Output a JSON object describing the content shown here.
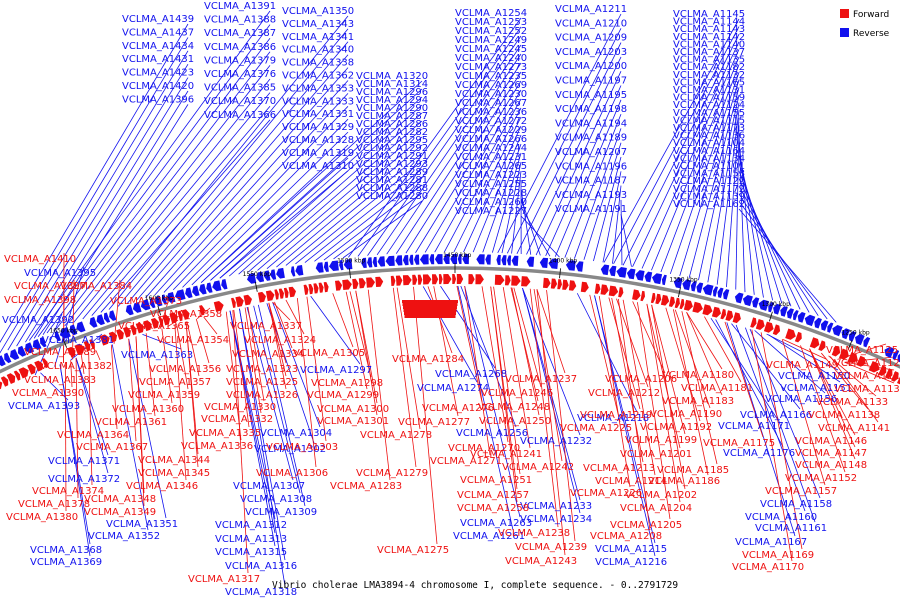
{
  "caption": "Vibrio cholerae LMA3894-4 chromosome I, complete sequence. - 0..2791729",
  "legend": [
    {
      "name": "Forward",
      "color": "#ee1111"
    },
    {
      "name": "Reverse",
      "color": "#1111ee"
    }
  ],
  "colors": {
    "forward": "#ee1111",
    "reverse": "#1111ee",
    "backbone": "#888888"
  },
  "axis_unit": "kbp",
  "ticks": [
    "1250 kbp",
    "1300 kbp",
    "1350 kbp",
    "1400 kbp",
    "1450 kbp",
    "1500 kbp",
    "1550 kbp",
    "1600 kbp",
    "1650 kbp"
  ],
  "reverse_labels": [
    "VCLMA_A1439",
    "VCLMA_A1437",
    "VCLMA_A1434",
    "VCLMA_A1431",
    "VCLMA_A1423",
    "VCLMA_A1420",
    "VCLMA_A1396",
    "VCLMA_A1391",
    "VCLMA_A1388",
    "VCLMA_A1387",
    "VCLMA_A1386",
    "VCLMA_A1379",
    "VCLMA_A1376",
    "VCLMA_A1385",
    "VCLMA_A1370",
    "VCLMA_A1366",
    "VCLMA_A1350",
    "VCLMA_A1343",
    "VCLMA_A1341",
    "VCLMA_A1340",
    "VCLMA_A1338",
    "VCLMA_A1362",
    "VCLMA_A1353",
    "VCLMA_A1333",
    "VCLMA_A1331",
    "VCLMA_A1329",
    "VCLMA_A1328",
    "VCLMA_A1319",
    "VCLMA_A1310",
    "VCLMA_A1320",
    "VCLMA_A1314",
    "VCLMA_A1296",
    "VCLMA_A1294",
    "VCLMA_A1290",
    "VCLMA_A1287",
    "VCLMA_A1286",
    "VCLMA_A1282",
    "VCLMA_A1295",
    "VCLMA_A1292",
    "VCLMA_A1291",
    "VCLMA_A1293",
    "VCLMA_A1289",
    "VCLMA_A1281",
    "VCLMA_A1288",
    "VCLMA_A1280",
    "VCLMA_A1254",
    "VCLMA_A1253",
    "VCLMA_A1252",
    "VCLMA_A1249",
    "VCLMA_A1245",
    "VCLMA_A1240",
    "VCLMA_A1273",
    "VCLMA_A1235",
    "VCLMA_A1269",
    "VCLMA_A1230",
    "VCLMA_A1267",
    "VCLMA_A1236",
    "VCLMA_A1272",
    "VCLMA_A1229",
    "VCLMA_A1266",
    "VCLMA_A1244",
    "VCLMA_A1231",
    "VCLMA_A1265",
    "VCLMA_A1223",
    "VCLMA_A1255",
    "VCLMA_A1228",
    "VCLMA_A1260",
    "VCLMA_A1227",
    "VCLMA_A1211",
    "VCLMA_A1210",
    "VCLMA_A1209",
    "VCLMA_A1203",
    "VCLMA_A1200",
    "VCLMA_A1197",
    "VCLMA_A1195",
    "VCLMA_A1198",
    "VCLMA_A1194",
    "VCLMA_A1189",
    "VCLMA_A1207",
    "VCLMA_A1196",
    "VCLMA_A1187",
    "VCLMA_A1193",
    "VCLMA_A1191",
    "VCLMA_A1145",
    "VCLMA_A1144",
    "VCLMA_A1143",
    "VCLMA_A1142",
    "VCLMA_A1140",
    "VCLMA_A1137",
    "VCLMA_A1135",
    "VCLMA_A1182",
    "VCLMA_A1132",
    "VCLMA_A1165",
    "VCLMA_A1131",
    "VCLMA_A1159",
    "VCLMA_A1124",
    "VCLMA_A1155",
    "VCLMA_A1115",
    "VCLMA_A1173",
    "VCLMA_A1136",
    "VCLMA_A1104",
    "VCLMA_A1164",
    "VCLMA_A1134",
    "VCLMA_A1101",
    "VCLMA_A1153",
    "VCLMA_A1122",
    "VCLMA_A1172",
    "VCLMA_A1139",
    "VCLMA_A1162",
    "VCLMA_A1395",
    "VCLMA_A1392",
    "VCLMA_A1381",
    "VCLMA_A1363",
    "VCLMA_A1393",
    "VCLMA_A1371",
    "VCLMA_A1372",
    "VCLMA_A1368",
    "VCLMA_A1369",
    "VCLMA_A1351",
    "VCLMA_A1352",
    "VCLMA_A1304",
    "VCLMA_A1302",
    "VCLMA_A1307",
    "VCLMA_A1308",
    "VCLMA_A1309",
    "VCLMA_A1312",
    "VCLMA_A1313",
    "VCLMA_A1315",
    "VCLMA_A1316",
    "VCLMA_A1318",
    "VCLMA_A1297",
    "VCLMA_A1268",
    "VCLMA_A1274",
    "VCLMA_A1256",
    "VCLMA_A1263",
    "VCLMA_A1261",
    "VCLMA_A1232",
    "VCLMA_A1233",
    "VCLMA_A1234",
    "VCLMA_A1215",
    "VCLMA_A1216",
    "VCLMA_A1218",
    "VCLMA_A1166",
    "VCLMA_A1171",
    "VCLMA_A1176",
    "VCLMA_A1160",
    "VCLMA_A1161",
    "VCLMA_A1167",
    "VCLMA_A1158",
    "VCLMA_A1150",
    "VCLMA_A1151",
    "VCLMA_A1156"
  ],
  "forward_labels": [
    "VCLMA_A1410",
    "VCLMA_A1397",
    "VCLMA_A1398",
    "VCLMA_A1384",
    "VCLMA_A1373",
    "VCLMA_A1358",
    "VCLMA_A1365",
    "VCLMA_A1354",
    "VCLMA_A1389",
    "VCLMA_A1382",
    "VCLMA_A1383",
    "VCLMA_A1390",
    "VCLMA_A1356",
    "VCLMA_A1357",
    "VCLMA_A1359",
    "VCLMA_A1360",
    "VCLMA_A1361",
    "VCLMA_A1364",
    "VCLMA_A1367",
    "VCLMA_A1344",
    "VCLMA_A1345",
    "VCLMA_A1346",
    "VCLMA_A1374",
    "VCLMA_A1378",
    "VCLMA_A1380",
    "VCLMA_A1348",
    "VCLMA_A1349",
    "VCLMA_A1337",
    "VCLMA_A1324",
    "VCLMA_A1334",
    "VCLMA_A1305",
    "VCLMA_A1323",
    "VCLMA_A1325",
    "VCLMA_A1326",
    "VCLMA_A1330",
    "VCLMA_A1332",
    "VCLMA_A1335",
    "VCLMA_A1336",
    "VCLMA_A1298",
    "VCLMA_A1299",
    "VCLMA_A1300",
    "VCLMA_A1301",
    "VCLMA_A1303",
    "VCLMA_A1306",
    "VCLMA_A1317",
    "VCLMA_A1284",
    "VCLMA_A1276",
    "VCLMA_A1277",
    "VCLMA_A1278",
    "VCLMA_A1270",
    "VCLMA_A1271",
    "VCLMA_A1279",
    "VCLMA_A1283",
    "VCLMA_A1275",
    "VCLMA_A1237",
    "VCLMA_A1246",
    "VCLMA_A1248",
    "VCLMA_A1250",
    "VCLMA_A1241",
    "VCLMA_A1242",
    "VCLMA_A1251",
    "VCLMA_A1257",
    "VCLMA_A1258",
    "VCLMA_A1238",
    "VCLMA_A1239",
    "VCLMA_A1243",
    "VCLMA_A1206",
    "VCLMA_A1212",
    "VCLMA_A1219",
    "VCLMA_A1225",
    "VCLMA_A1213",
    "VCLMA_A1214",
    "VCLMA_A1226",
    "VCLMA_A1199",
    "VCLMA_A1201",
    "VCLMA_A1202",
    "VCLMA_A1204",
    "VCLMA_A1205",
    "VCLMA_A1208",
    "VCLMA_A1180",
    "VCLMA_A1181",
    "VCLMA_A1183",
    "VCLMA_A1190",
    "VCLMA_A1192",
    "VCLMA_A1185",
    "VCLMA_A1186",
    "VCLMA_A1175",
    "VCLMA_A1149",
    "VCLMA_A1138",
    "VCLMA_A1141",
    "VCLMA_A1146",
    "VCLMA_A1147",
    "VCLMA_A1148",
    "VCLMA_A1152",
    "VCLMA_A1157",
    "VCLMA_A1169",
    "VCLMA_A1170",
    "VCLMA_A1125",
    "VCLMA_A1126",
    "VCLMA_A1128",
    "VCLMA_A1130",
    "VCLMA_A1133"
  ]
}
